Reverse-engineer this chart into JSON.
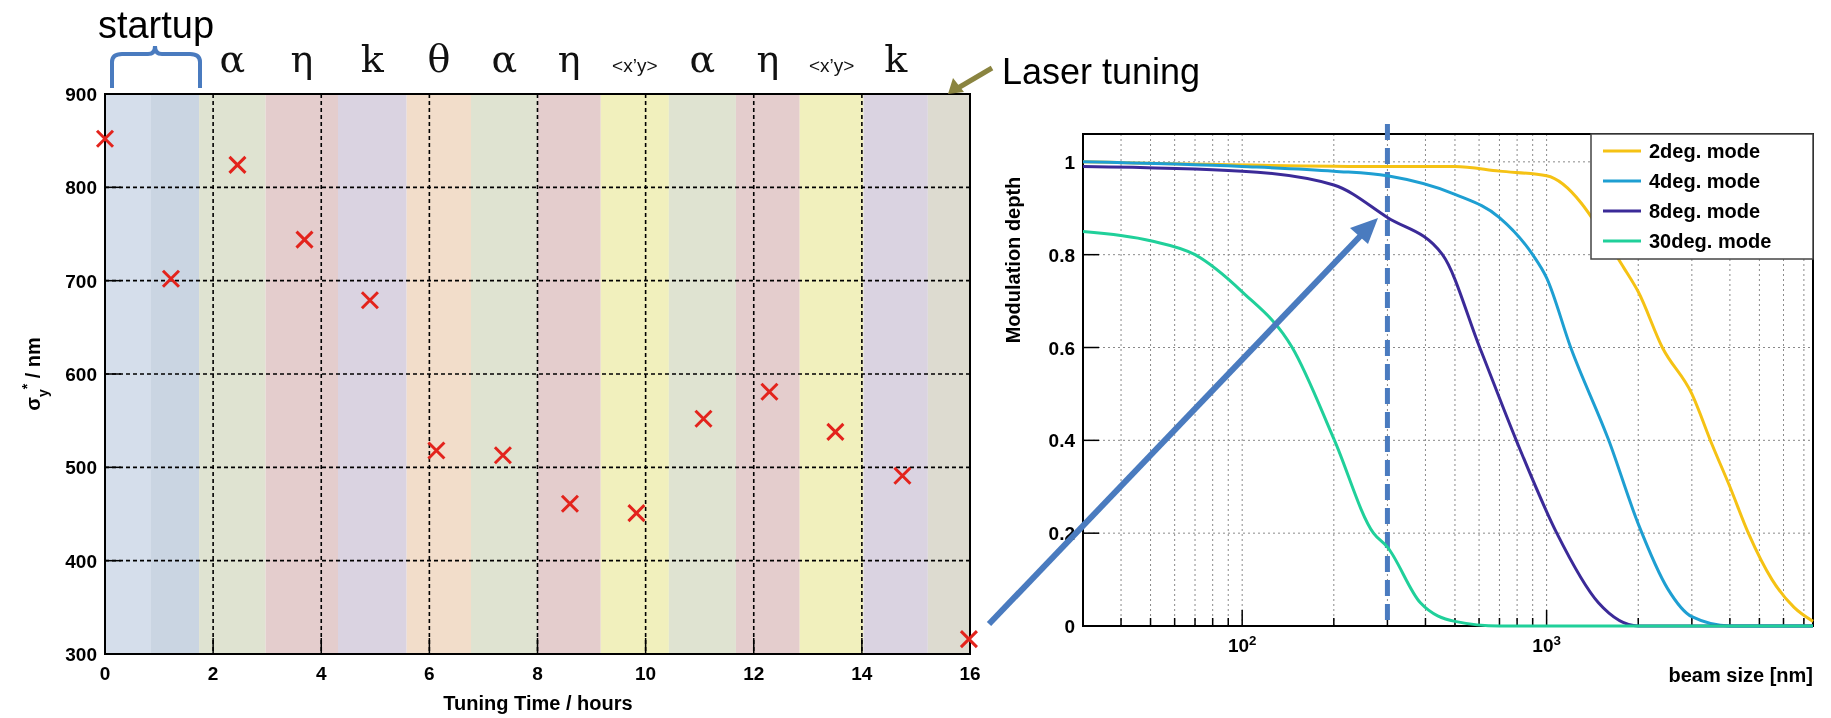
{
  "chart_data": [
    {
      "type": "scatter",
      "xlabel": "Tuning Time / hours",
      "ylabel": "σ$_{y}$$^{*}$ / nm",
      "x": [
        0,
        1.22,
        2.45,
        3.69,
        4.9,
        6.13,
        7.36,
        8.6,
        9.83,
        11.07,
        12.29,
        13.51,
        14.75,
        15.98
      ],
      "series": [
        {
          "color": "#e3231c",
          "values": [
            852,
            702,
            824,
            744,
            679,
            518,
            513,
            461,
            451,
            552,
            581,
            538,
            491,
            316
          ]
        }
      ],
      "xlim": [
        0,
        16
      ],
      "ylim": [
        300,
        900
      ],
      "xticks": [
        0,
        2,
        4,
        6,
        8,
        10,
        12,
        14,
        16
      ],
      "yticks": [
        300,
        400,
        500,
        600,
        700,
        800,
        900
      ],
      "grid": true,
      "marker": "cross",
      "bands": [
        {
          "axis": "x",
          "from": 0,
          "to": 0.85,
          "label": null,
          "color": "#d5deeb"
        },
        {
          "axis": "x",
          "from": 0.85,
          "to": 1.74,
          "label": null,
          "color": "#cad5e2"
        },
        {
          "axis": "x",
          "from": 1.74,
          "to": 2.97,
          "label": "α",
          "color": "#dfe3d1"
        },
        {
          "axis": "x",
          "from": 2.97,
          "to": 4.31,
          "label": "η",
          "color": "#e4cdcd"
        },
        {
          "axis": "x",
          "from": 4.31,
          "to": 5.58,
          "label": "k",
          "color": "#dad3e1"
        },
        {
          "axis": "x",
          "from": 5.58,
          "to": 6.77,
          "label": "θ",
          "color": "#f2ddca"
        },
        {
          "axis": "x",
          "from": 6.77,
          "to": 8.0,
          "label": "α",
          "color": "#dfe3d1"
        },
        {
          "axis": "x",
          "from": 8.0,
          "to": 9.17,
          "label": "η",
          "color": "#e4cdcd"
        },
        {
          "axis": "x",
          "from": 9.17,
          "to": 10.43,
          "label": "<x’y>",
          "color": "#f1f0bd"
        },
        {
          "axis": "x",
          "from": 10.43,
          "to": 11.67,
          "label": "α",
          "color": "#dfe3d1"
        },
        {
          "axis": "x",
          "from": 11.67,
          "to": 12.85,
          "label": "η",
          "color": "#e4cdcd"
        },
        {
          "axis": "x",
          "from": 12.85,
          "to": 14.03,
          "label": "<x’y>",
          "color": "#f1f0bd"
        },
        {
          "axis": "x",
          "from": 14.03,
          "to": 15.22,
          "label": "k",
          "color": "#dad3e1"
        },
        {
          "axis": "x",
          "from": 15.22,
          "to": 16,
          "label": null,
          "color": "#dddbd0"
        }
      ],
      "annotations": [
        "startup",
        "Laser tuning"
      ]
    },
    {
      "type": "line",
      "xlabel": "beam size [nm]",
      "ylabel": "Modulation depth",
      "log": "x",
      "xlim": [
        30,
        7500
      ],
      "ylim": [
        0,
        1.06
      ],
      "xticks": [
        {
          "value": 30,
          "label": null
        },
        {
          "value": 40,
          "label": null
        },
        {
          "value": 50,
          "label": null
        },
        {
          "value": 60,
          "label": null
        },
        {
          "value": 70,
          "label": null
        },
        {
          "value": 80,
          "label": null
        },
        {
          "value": 90,
          "label": null
        },
        {
          "value": 100,
          "label": "10$^{2}$"
        },
        {
          "value": 200,
          "label": null
        },
        {
          "value": 300,
          "label": null
        },
        {
          "value": 400,
          "label": null
        },
        {
          "value": 500,
          "label": null
        },
        {
          "value": 600,
          "label": null
        },
        {
          "value": 700,
          "label": null
        },
        {
          "value": 800,
          "label": null
        },
        {
          "value": 900,
          "label": null
        },
        {
          "value": 1000,
          "label": "10$^{3}$"
        },
        {
          "value": 2000,
          "label": null
        },
        {
          "value": 3000,
          "label": null
        },
        {
          "value": 4000,
          "label": null
        },
        {
          "value": 5000,
          "label": null
        },
        {
          "value": 6000,
          "label": null
        },
        {
          "value": 7000,
          "label": null
        }
      ],
      "yticks": [
        0,
        0.2,
        0.4,
        0.6,
        0.8,
        1
      ],
      "grid": true,
      "legend": "top right",
      "series": [
        {
          "name": "2deg. mode",
          "color": "#f5c214",
          "x": [
            30,
            300,
            500,
            700,
            1000,
            1800,
            2000,
            2400,
            3000,
            3500,
            4000,
            4600,
            5500,
            6500,
            7500
          ],
          "values": [
            1,
            0.99,
            0.99,
            0.98,
            0.97,
            0.77,
            0.72,
            0.6,
            0.5,
            0.39,
            0.3,
            0.2,
            0.1,
            0.04,
            0.01
          ]
        },
        {
          "name": "4deg. mode",
          "color": "#1e9fd2",
          "x": [
            30,
            100,
            200,
            300,
            500,
            700,
            900,
            1000,
            1200,
            1600,
            2000,
            2500,
            3000,
            4000,
            7500
          ],
          "values": [
            1,
            0.99,
            0.98,
            0.97,
            0.93,
            0.88,
            0.8,
            0.75,
            0.6,
            0.4,
            0.22,
            0.08,
            0.02,
            0,
            0
          ]
        },
        {
          "name": "8deg. mode",
          "color": "#3b2a98",
          "x": [
            30,
            100,
            200,
            300,
            455,
            603,
            795,
            1080,
            1480,
            2000,
            7500
          ],
          "values": [
            0.99,
            0.98,
            0.95,
            0.88,
            0.8,
            0.6,
            0.4,
            0.2,
            0.05,
            0,
            0
          ]
        },
        {
          "name": "30deg. mode",
          "color": "#20d09a",
          "x": [
            30,
            50,
            70,
            100,
            146,
            201,
            270,
            300,
            385,
            500,
            700,
            7500
          ],
          "values": [
            0.85,
            0.83,
            0.8,
            0.72,
            0.6,
            0.4,
            0.2,
            0.17,
            0.05,
            0.01,
            0,
            0
          ]
        }
      ],
      "ref_lines": [
        {
          "axis": "x",
          "value": 300,
          "color": "#4a7bbf",
          "line_style": "dashed"
        }
      ]
    }
  ]
}
